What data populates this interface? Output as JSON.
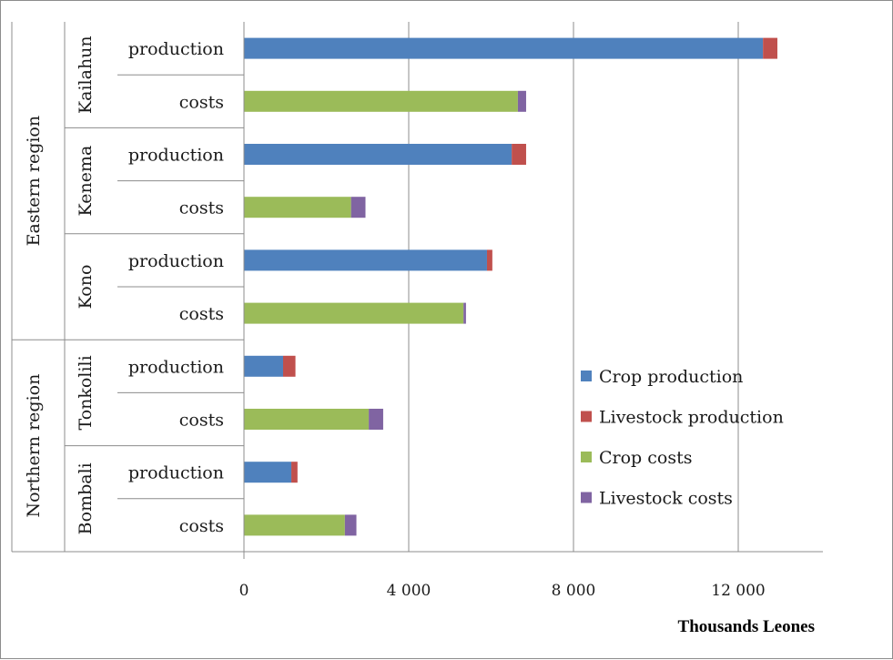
{
  "chart_data": {
    "type": "bar",
    "orientation": "horizontal",
    "stacked": true,
    "xlabel": "Thousands Leones",
    "xlim": [
      0,
      14000
    ],
    "xticks": [
      0,
      4000,
      8000,
      12000
    ],
    "xtick_labels": [
      "0",
      "4 000",
      "8 000",
      "12 000"
    ],
    "grid": "vertical",
    "legend_position": "right",
    "colors": {
      "Crop production": "#4f81bd",
      "Livestock production": "#c0504d",
      "Crop costs": "#9bbb59",
      "Livestock costs": "#8064a2"
    },
    "regions": [
      {
        "name": "Eastern region",
        "districts": [
          "Kailahun",
          "Kenema",
          "Kono"
        ]
      },
      {
        "name": "Northern region",
        "districts": [
          "Tonkolili",
          "Bombali"
        ]
      }
    ],
    "rows": [
      {
        "region": "Eastern region",
        "district": "Kailahun",
        "label": "production",
        "segments": [
          {
            "series": "Crop production",
            "value": 12600
          },
          {
            "series": "Livestock production",
            "value": 350
          }
        ]
      },
      {
        "region": "Eastern region",
        "district": "Kailahun",
        "label": "costs",
        "segments": [
          {
            "series": "Crop costs",
            "value": 6650
          },
          {
            "series": "Livestock costs",
            "value": 200
          }
        ]
      },
      {
        "region": "Eastern region",
        "district": "Kenema",
        "label": "production",
        "segments": [
          {
            "series": "Crop production",
            "value": 6500
          },
          {
            "series": "Livestock production",
            "value": 350
          }
        ]
      },
      {
        "region": "Eastern region",
        "district": "Kenema",
        "label": "costs",
        "segments": [
          {
            "series": "Crop costs",
            "value": 2600
          },
          {
            "series": "Livestock costs",
            "value": 350
          }
        ]
      },
      {
        "region": "Eastern region",
        "district": "Kono",
        "label": "production",
        "segments": [
          {
            "series": "Crop production",
            "value": 5900
          },
          {
            "series": "Livestock production",
            "value": 130
          }
        ]
      },
      {
        "region": "Eastern region",
        "district": "Kono",
        "label": "costs",
        "segments": [
          {
            "series": "Crop costs",
            "value": 5330
          },
          {
            "series": "Livestock costs",
            "value": 60
          }
        ]
      },
      {
        "region": "Northern region",
        "district": "Tonkolili",
        "label": "production",
        "segments": [
          {
            "series": "Crop production",
            "value": 950
          },
          {
            "series": "Livestock production",
            "value": 300
          }
        ]
      },
      {
        "region": "Northern region",
        "district": "Tonkolili",
        "label": "costs",
        "segments": [
          {
            "series": "Crop costs",
            "value": 3030
          },
          {
            "series": "Livestock costs",
            "value": 350
          }
        ]
      },
      {
        "region": "Northern region",
        "district": "Bombali",
        "label": "production",
        "segments": [
          {
            "series": "Crop production",
            "value": 1150
          },
          {
            "series": "Livestock production",
            "value": 150
          }
        ]
      },
      {
        "region": "Northern region",
        "district": "Bombali",
        "label": "costs",
        "segments": [
          {
            "series": "Crop costs",
            "value": 2450
          },
          {
            "series": "Livestock costs",
            "value": 280
          }
        ]
      }
    ],
    "legend": [
      "Crop production",
      "Livestock production",
      "Crop costs",
      "Livestock costs"
    ]
  }
}
